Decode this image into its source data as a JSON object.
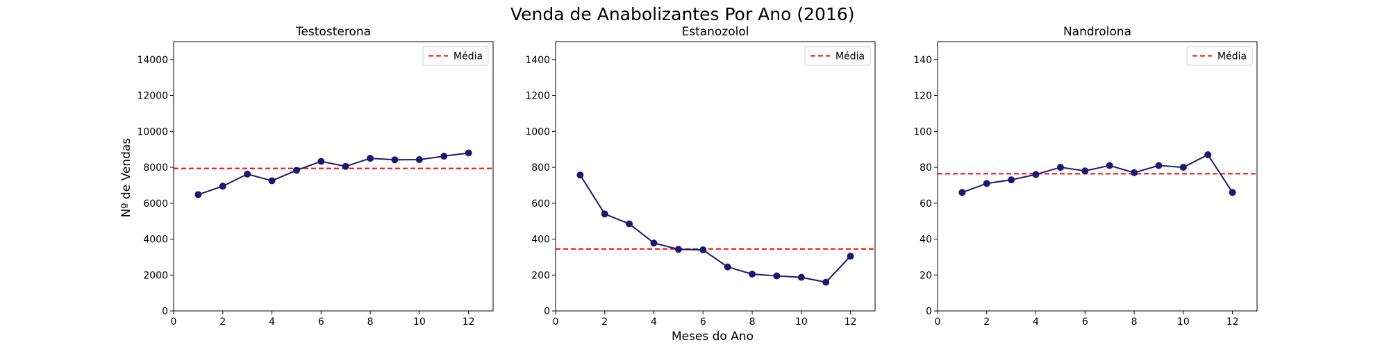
{
  "figure": {
    "suptitle": "Venda de Anabolizantes Por Ano (2016)",
    "ylabel": "Nº de Vendas",
    "xlabel": "Meses do Ano"
  },
  "colors": {
    "series": "#191970",
    "mean_line": "#ff0000",
    "axes": "#000000",
    "legend_border": "#cccccc"
  },
  "chart_data": [
    {
      "type": "line",
      "title": "Testosterona",
      "x": [
        1,
        2,
        3,
        4,
        5,
        6,
        7,
        8,
        9,
        10,
        11,
        12
      ],
      "values": [
        6480,
        6950,
        7620,
        7250,
        7830,
        8330,
        8050,
        8500,
        8420,
        8430,
        8620,
        8800
      ],
      "mean": 7940,
      "mean_label": "Média",
      "xlim": [
        0,
        13
      ],
      "ylim": [
        0,
        15000
      ],
      "xticks": [
        0,
        2,
        4,
        6,
        8,
        10,
        12
      ],
      "yticks": [
        0,
        2000,
        4000,
        6000,
        8000,
        10000,
        12000,
        14000
      ],
      "legend": "top-right",
      "grid": false
    },
    {
      "type": "line",
      "title": "Estanozolol",
      "x": [
        1,
        2,
        3,
        4,
        5,
        6,
        7,
        8,
        9,
        10,
        11,
        12
      ],
      "values": [
        757,
        540,
        485,
        378,
        343,
        340,
        245,
        205,
        195,
        187,
        160,
        305
      ],
      "mean": 345,
      "mean_label": "Média",
      "xlim": [
        0,
        13
      ],
      "ylim": [
        0,
        1500
      ],
      "xticks": [
        0,
        2,
        4,
        6,
        8,
        10,
        12
      ],
      "yticks": [
        0,
        200,
        400,
        600,
        800,
        1000,
        1200,
        1400
      ],
      "legend": "top-right",
      "grid": false
    },
    {
      "type": "line",
      "title": "Nandrolona",
      "x": [
        1,
        2,
        3,
        4,
        5,
        6,
        7,
        8,
        9,
        10,
        11,
        12
      ],
      "values": [
        66,
        71,
        73,
        76,
        80,
        78,
        81,
        77,
        81,
        80,
        87,
        66
      ],
      "mean": 76.4,
      "mean_label": "Média",
      "xlim": [
        0,
        13
      ],
      "ylim": [
        0,
        150
      ],
      "xticks": [
        0,
        2,
        4,
        6,
        8,
        10,
        12
      ],
      "yticks": [
        0,
        20,
        40,
        60,
        80,
        100,
        120,
        140
      ],
      "legend": "top-right",
      "grid": false
    }
  ]
}
